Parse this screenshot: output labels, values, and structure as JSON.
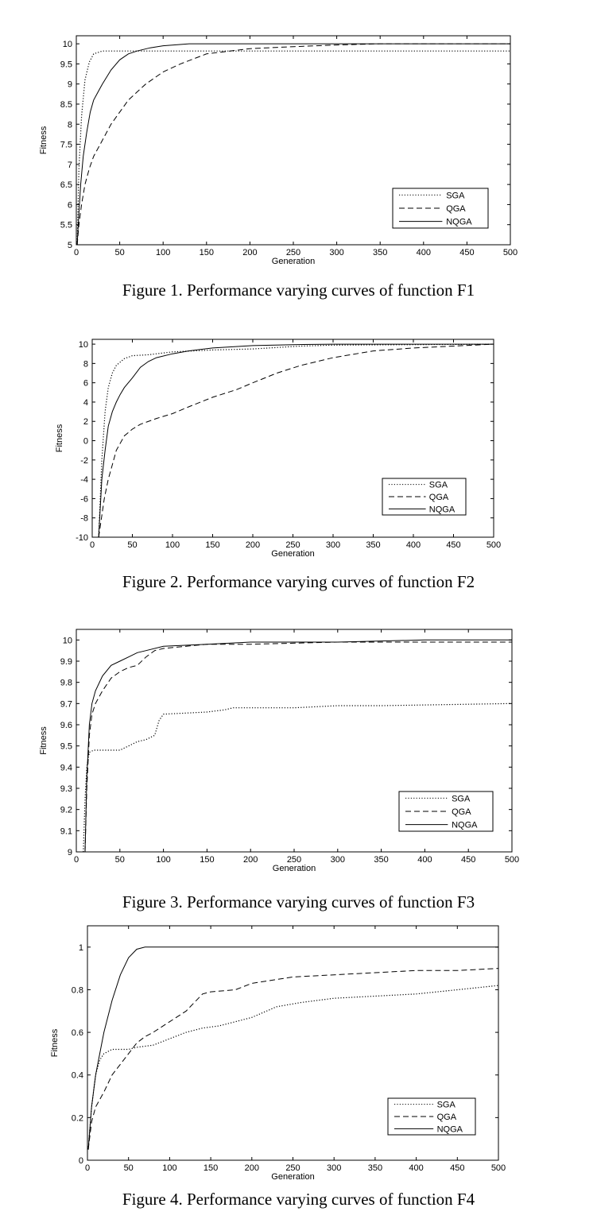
{
  "figures": [
    {
      "caption": "Figure 1. Performance varying curves of function F1",
      "chart_data": {
        "type": "line",
        "xlabel": "Generation",
        "ylabel": "Fitness",
        "xlim": [
          0,
          500
        ],
        "ylim": [
          5,
          10.2
        ],
        "xticks": [
          0,
          50,
          100,
          150,
          200,
          250,
          300,
          350,
          400,
          450,
          500
        ],
        "yticks": [
          5,
          5.5,
          6,
          6.5,
          7,
          7.5,
          8,
          8.5,
          9,
          9.5,
          10
        ],
        "ytick_labels": [
          "5",
          "5.5",
          "6",
          "6.5",
          "7",
          "7.5",
          "8",
          "8.5",
          "9",
          "9.5",
          "10"
        ],
        "grid": false,
        "legend_position": "lower-right",
        "series": [
          {
            "name": "SGA",
            "style": "dotted",
            "x": [
              1,
              3,
              6,
              10,
              15,
              20,
              30,
              500
            ],
            "y": [
              5.0,
              6.9,
              8.2,
              9.1,
              9.55,
              9.75,
              9.82,
              9.82
            ]
          },
          {
            "name": "QGA",
            "style": "dashed",
            "x": [
              1,
              3,
              6,
              10,
              15,
              20,
              30,
              40,
              50,
              60,
              70,
              80,
              100,
              120,
              150,
              200,
              250,
              300,
              350,
              500
            ],
            "y": [
              5.0,
              5.5,
              6.0,
              6.5,
              6.9,
              7.2,
              7.6,
              8.0,
              8.3,
              8.6,
              8.8,
              9.0,
              9.3,
              9.5,
              9.75,
              9.88,
              9.93,
              9.97,
              10.0,
              10.0
            ]
          },
          {
            "name": "NQGA",
            "style": "solid",
            "x": [
              1,
              3,
              5,
              8,
              12,
              16,
              20,
              25,
              30,
              40,
              50,
              60,
              70,
              85,
              100,
              130,
              500
            ],
            "y": [
              5.0,
              5.8,
              6.5,
              7.2,
              7.8,
              8.3,
              8.6,
              8.8,
              9.0,
              9.35,
              9.6,
              9.75,
              9.82,
              9.9,
              9.95,
              10.0,
              10.0
            ]
          }
        ]
      }
    },
    {
      "caption": "Figure 2. Performance varying curves of function F2",
      "chart_data": {
        "type": "line",
        "xlabel": "Generation",
        "ylabel": "Fitness",
        "xlim": [
          0,
          500
        ],
        "ylim": [
          -10,
          10.5
        ],
        "xticks": [
          0,
          50,
          100,
          150,
          200,
          250,
          300,
          350,
          400,
          450,
          500
        ],
        "yticks": [
          -10,
          -8,
          -6,
          -4,
          -2,
          0,
          2,
          4,
          6,
          8,
          10
        ],
        "ytick_labels": [
          "-10",
          "-8",
          "-6",
          "-4",
          "-2",
          "0",
          "2",
          "4",
          "6",
          "8",
          "10"
        ],
        "grid": false,
        "legend_position": "lower-right",
        "series": [
          {
            "name": "SGA",
            "style": "dotted",
            "x": [
              8,
              12,
              16,
              20,
              25,
              30,
              40,
              50,
              70,
              100,
              150,
              200,
              260,
              300,
              500
            ],
            "y": [
              -10,
              -2,
              3,
              5.5,
              7.0,
              7.8,
              8.5,
              8.8,
              8.9,
              9.2,
              9.4,
              9.5,
              9.8,
              9.9,
              10.0
            ]
          },
          {
            "name": "QGA",
            "style": "dashed",
            "x": [
              8,
              15,
              20,
              25,
              30,
              40,
              50,
              60,
              80,
              100,
              120,
              150,
              180,
              200,
              230,
              260,
              300,
              350,
              400,
              450,
              500
            ],
            "y": [
              -10,
              -6,
              -4,
              -2.5,
              -1,
              0.5,
              1.2,
              1.7,
              2.3,
              2.8,
              3.5,
              4.5,
              5.3,
              6.0,
              7.0,
              7.8,
              8.6,
              9.3,
              9.6,
              9.8,
              10.0
            ]
          },
          {
            "name": "NQGA",
            "style": "solid",
            "x": [
              8,
              12,
              16,
              20,
              25,
              30,
              35,
              40,
              50,
              60,
              70,
              80,
              100,
              120,
              150,
              200,
              250,
              300,
              500
            ],
            "y": [
              -10,
              -4,
              -1,
              1.5,
              3.0,
              4.0,
              4.8,
              5.5,
              6.5,
              7.6,
              8.2,
              8.6,
              9.0,
              9.3,
              9.6,
              9.85,
              9.95,
              10.0,
              10.0
            ]
          }
        ]
      }
    },
    {
      "caption": "Figure 3. Performance varying curves of function F3",
      "chart_data": {
        "type": "line",
        "xlabel": "Generation",
        "ylabel": "Fitness",
        "xlim": [
          0,
          500
        ],
        "ylim": [
          9,
          10.05
        ],
        "xticks": [
          0,
          50,
          100,
          150,
          200,
          250,
          300,
          350,
          400,
          450,
          500
        ],
        "yticks": [
          9,
          9.1,
          9.2,
          9.3,
          9.4,
          9.5,
          9.6,
          9.7,
          9.8,
          9.9,
          10
        ],
        "ytick_labels": [
          "9",
          "9.1",
          "9.2",
          "9.3",
          "9.4",
          "9.5",
          "9.6",
          "9.7",
          "9.8",
          "9.9",
          "10"
        ],
        "grid": false,
        "legend_position": "lower-right",
        "series": [
          {
            "name": "SGA",
            "style": "dotted",
            "x": [
              8,
              10,
              12,
              15,
              20,
              50,
              60,
              70,
              80,
              90,
              95,
              100,
              150,
              170,
              180,
              250,
              300,
              350,
              500
            ],
            "y": [
              9.0,
              9.25,
              9.4,
              9.47,
              9.48,
              9.48,
              9.5,
              9.52,
              9.53,
              9.55,
              9.62,
              9.65,
              9.66,
              9.67,
              9.68,
              9.68,
              9.69,
              9.69,
              9.7
            ]
          },
          {
            "name": "QGA",
            "style": "dashed",
            "x": [
              10,
              12,
              15,
              18,
              22,
              30,
              40,
              50,
              60,
              70,
              80,
              90,
              100,
              150,
              200,
              300,
              400,
              500
            ],
            "y": [
              9.0,
              9.3,
              9.55,
              9.65,
              9.7,
              9.76,
              9.82,
              9.85,
              9.87,
              9.88,
              9.92,
              9.95,
              9.96,
              9.98,
              9.98,
              9.99,
              9.99,
              9.99
            ]
          },
          {
            "name": "NQGA",
            "style": "solid",
            "x": [
              10,
              12,
              15,
              18,
              22,
              30,
              40,
              50,
              60,
              70,
              80,
              100,
              150,
              200,
              300,
              400,
              500
            ],
            "y": [
              9.0,
              9.35,
              9.6,
              9.7,
              9.76,
              9.83,
              9.88,
              9.9,
              9.92,
              9.94,
              9.95,
              9.97,
              9.98,
              9.99,
              9.99,
              10.0,
              10.0
            ]
          }
        ]
      }
    },
    {
      "caption": "Figure 4. Performance varying curves of function F4",
      "chart_data": {
        "type": "line",
        "xlabel": "Generation",
        "ylabel": "Fitness",
        "xlim": [
          0,
          500
        ],
        "ylim": [
          0,
          1.1
        ],
        "xticks": [
          0,
          50,
          100,
          150,
          200,
          250,
          300,
          350,
          400,
          450,
          500
        ],
        "yticks": [
          0,
          0.2,
          0.4,
          0.6,
          0.8,
          1
        ],
        "ytick_labels": [
          "0",
          "0.2",
          "0.4",
          "0.6",
          "0.8",
          "1"
        ],
        "grid": false,
        "legend_position": "lower-right",
        "series": [
          {
            "name": "SGA",
            "style": "dotted",
            "x": [
              1,
              5,
              10,
              15,
              20,
              30,
              50,
              60,
              80,
              100,
              120,
              140,
              160,
              180,
              200,
              230,
              260,
              300,
              350,
              400,
              450,
              500
            ],
            "y": [
              0.05,
              0.25,
              0.4,
              0.47,
              0.5,
              0.52,
              0.52,
              0.53,
              0.54,
              0.57,
              0.6,
              0.62,
              0.63,
              0.65,
              0.67,
              0.72,
              0.74,
              0.76,
              0.77,
              0.78,
              0.8,
              0.82
            ]
          },
          {
            "name": "QGA",
            "style": "dashed",
            "x": [
              1,
              5,
              10,
              20,
              30,
              40,
              50,
              60,
              70,
              80,
              100,
              120,
              140,
              150,
              180,
              200,
              250,
              300,
              350,
              400,
              450,
              500
            ],
            "y": [
              0.05,
              0.18,
              0.25,
              0.32,
              0.4,
              0.45,
              0.5,
              0.55,
              0.58,
              0.6,
              0.65,
              0.7,
              0.78,
              0.79,
              0.8,
              0.83,
              0.86,
              0.87,
              0.88,
              0.89,
              0.89,
              0.9
            ]
          },
          {
            "name": "NQGA",
            "style": "solid",
            "x": [
              1,
              5,
              10,
              15,
              20,
              30,
              40,
              50,
              60,
              70,
              500
            ],
            "y": [
              0.05,
              0.25,
              0.4,
              0.5,
              0.6,
              0.75,
              0.87,
              0.95,
              0.99,
              1.0,
              1.0
            ]
          }
        ]
      }
    }
  ]
}
